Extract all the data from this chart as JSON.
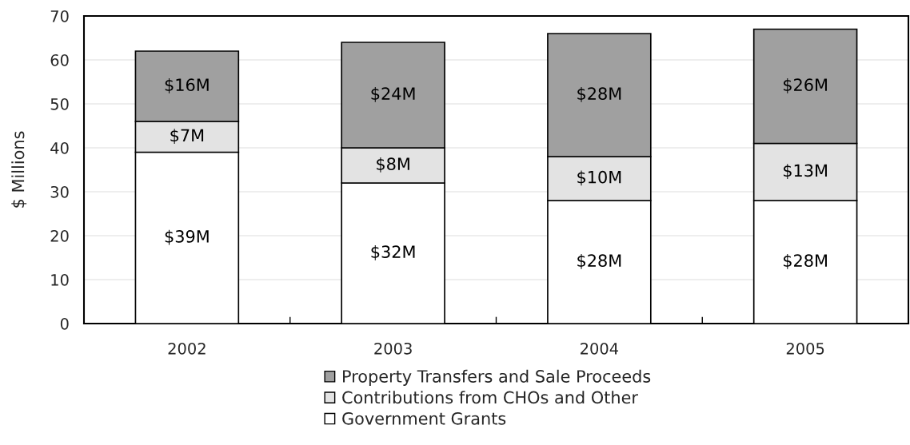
{
  "chart_data": {
    "type": "bar",
    "stacked": true,
    "categories": [
      "2002",
      "2003",
      "2004",
      "2005"
    ],
    "ylabel": "$ Millions",
    "ylim": [
      0,
      70
    ],
    "yticks": [
      0,
      10,
      20,
      30,
      40,
      50,
      60,
      70
    ],
    "grid": "y",
    "legend": "bottom",
    "series": [
      {
        "name": "Government Grants",
        "color": "#ffffff",
        "values": [
          39,
          32,
          28,
          28
        ],
        "value_labels": [
          "$39M",
          "$32M",
          "$28M",
          "$28M"
        ]
      },
      {
        "name": "Contributions from CHOs and Other",
        "color": "#e3e3e3",
        "values": [
          7,
          8,
          10,
          13
        ],
        "value_labels": [
          "$7M",
          "$8M",
          "$10M",
          "$13M"
        ]
      },
      {
        "name": "Property Transfers and Sale Proceeds",
        "color": "#a0a0a0",
        "values": [
          16,
          24,
          28,
          26
        ],
        "value_labels": [
          "$16M",
          "$24M",
          "$28M",
          "$26M"
        ]
      }
    ]
  }
}
